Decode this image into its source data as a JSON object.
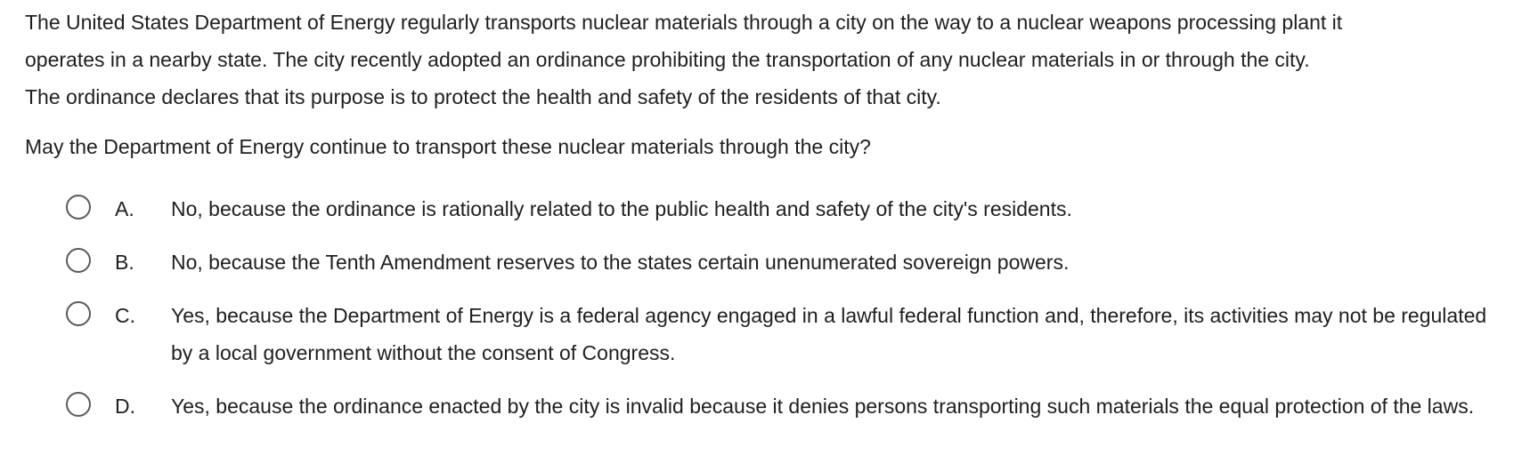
{
  "question": {
    "stem_lines": [
      "The United States Department of Energy regularly transports nuclear materials through a city on the way to a nuclear weapons processing plant it",
      "operates in a nearby state.  The city recently adopted an ordinance prohibiting the transportation of any nuclear materials in or through the city.",
      "The ordinance declares that its purpose is to protect the health and safety of the residents of that city."
    ],
    "prompt": "May the Department of Energy continue to transport these nuclear materials through the city?",
    "options": [
      {
        "letter": "A.",
        "text": "No, because the ordinance is rationally related to the public health and safety of the city's residents."
      },
      {
        "letter": "B.",
        "text": "No, because the Tenth Amendment reserves to the states certain unenumerated sovereign powers."
      },
      {
        "letter": "C.",
        "text": "Yes, because the Department of Energy is a federal agency engaged in a lawful federal function and, therefore, its activities may not be regulated by a local government without the consent of Congress."
      },
      {
        "letter": "D.",
        "text": "Yes, because the ordinance enacted by the city is invalid because it denies persons transporting such materials the equal protection of the laws."
      }
    ]
  }
}
